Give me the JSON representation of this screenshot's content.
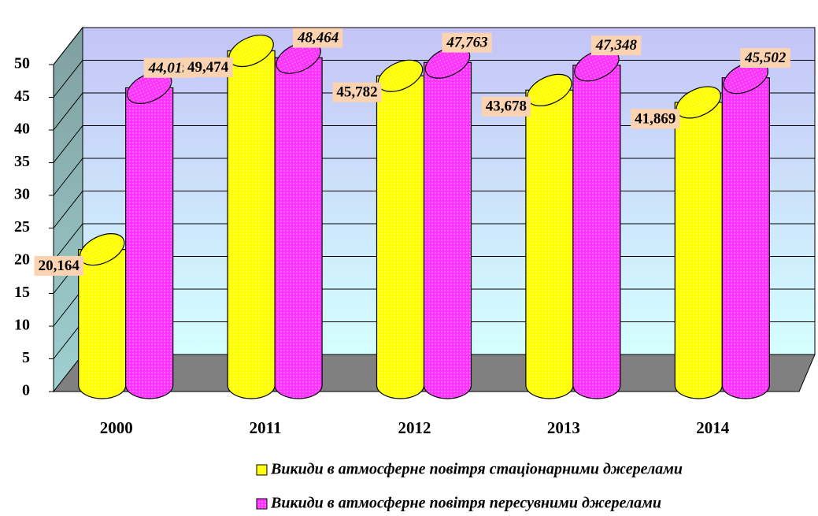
{
  "chart_data": {
    "type": "bar",
    "categories": [
      "2000",
      "2011",
      "2012",
      "2013",
      "2014"
    ],
    "series": [
      {
        "name": "Викиди в атмосферне повітря стаціонарними джерелами",
        "color": "#ffff00",
        "values": [
          20.164,
          49.474,
          45.782,
          43.678,
          41.869
        ],
        "value_labels": [
          "20,164",
          "49,474",
          "45,782",
          "43,678",
          "41,869"
        ]
      },
      {
        "name": "Викиди в атмосферне повітря пересувними джерелами",
        "color": "#ff33ff",
        "values": [
          44.019,
          48.464,
          47.763,
          47.348,
          45.502
        ],
        "value_labels": [
          "44,019",
          "48,464",
          "47,763",
          "47,348",
          "45,502"
        ]
      }
    ],
    "ylim": [
      0,
      50
    ],
    "yticks": [
      0,
      5,
      10,
      15,
      20,
      25,
      30,
      35,
      40,
      45,
      50
    ],
    "grid": true,
    "legend": "bottom"
  }
}
